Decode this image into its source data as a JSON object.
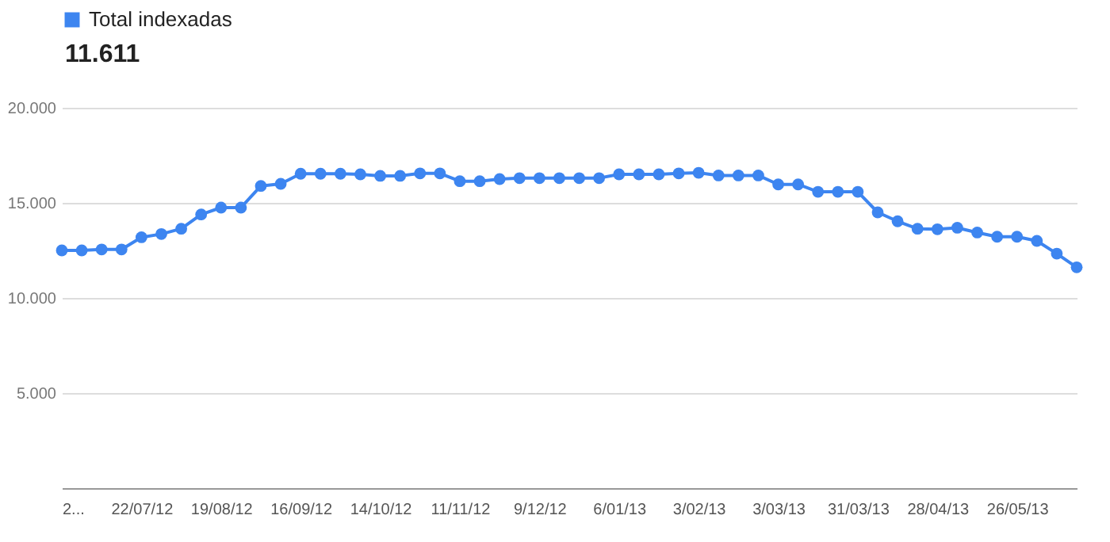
{
  "chart_data": {
    "type": "line",
    "annotations": [
      "11.611"
    ],
    "x": [
      "2012-06-24",
      "2012-07-01",
      "2012-07-08",
      "2012-07-15",
      "2012-07-22",
      "2012-07-29",
      "2012-08-05",
      "2012-08-12",
      "2012-08-19",
      "2012-08-26",
      "2012-09-02",
      "2012-09-09",
      "2012-09-16",
      "2012-09-23",
      "2012-09-30",
      "2012-10-07",
      "2012-10-14",
      "2012-10-21",
      "2012-10-28",
      "2012-11-04",
      "2012-11-11",
      "2012-11-18",
      "2012-11-25",
      "2012-12-02",
      "2012-12-09",
      "2012-12-16",
      "2012-12-23",
      "2012-12-30",
      "2013-01-06",
      "2013-01-13",
      "2013-01-20",
      "2013-01-27",
      "2013-02-03",
      "2013-02-10",
      "2013-02-17",
      "2013-02-24",
      "2013-03-03",
      "2013-03-10",
      "2013-03-17",
      "2013-03-24",
      "2013-03-31",
      "2013-04-07",
      "2013-04-14",
      "2013-04-21",
      "2013-04-28",
      "2013-05-05",
      "2013-05-12",
      "2013-05-19",
      "2013-05-26",
      "2013-06-02",
      "2013-06-09",
      "2013-06-16"
    ],
    "series": [
      {
        "name": "Total indexadas",
        "color": "#3d85f0",
        "values": [
          12500,
          12500,
          12550,
          12550,
          13190,
          13360,
          13640,
          14390,
          14750,
          14750,
          15890,
          16000,
          16530,
          16530,
          16530,
          16500,
          16420,
          16420,
          16550,
          16550,
          16140,
          16140,
          16250,
          16300,
          16300,
          16300,
          16300,
          16300,
          16500,
          16500,
          16500,
          16550,
          16580,
          16440,
          16440,
          16440,
          15970,
          15970,
          15580,
          15580,
          15580,
          14500,
          14030,
          13640,
          13610,
          13690,
          13440,
          13220,
          13220,
          13000,
          12330,
          11611
        ]
      }
    ],
    "xlim": [
      "2012-06-24",
      "2013-06-16"
    ],
    "xticks": [
      {
        "value": "2012-06-24",
        "label": "2..."
      },
      {
        "value": "2012-07-22",
        "label": "22/07/12"
      },
      {
        "value": "2012-08-19",
        "label": "19/08/12"
      },
      {
        "value": "2012-09-16",
        "label": "16/09/12"
      },
      {
        "value": "2012-10-14",
        "label": "14/10/12"
      },
      {
        "value": "2012-11-11",
        "label": "11/11/12"
      },
      {
        "value": "2012-12-09",
        "label": "9/12/12"
      },
      {
        "value": "2013-01-06",
        "label": "6/01/13"
      },
      {
        "value": "2013-02-03",
        "label": "3/02/13"
      },
      {
        "value": "2013-03-03",
        "label": "3/03/13"
      },
      {
        "value": "2013-03-31",
        "label": "31/03/13"
      },
      {
        "value": "2013-04-28",
        "label": "28/04/13"
      },
      {
        "value": "2013-05-26",
        "label": "26/05/13"
      }
    ],
    "ylim": [
      0,
      20000
    ],
    "yticks": [
      {
        "value": 5000,
        "label": "5.000"
      },
      {
        "value": 10000,
        "label": "10.000"
      },
      {
        "value": 15000,
        "label": "15.000"
      },
      {
        "value": 20000,
        "label": "20.000"
      }
    ],
    "grid": "y",
    "legend": "top left",
    "marker": "circle",
    "line_style": "solid"
  }
}
